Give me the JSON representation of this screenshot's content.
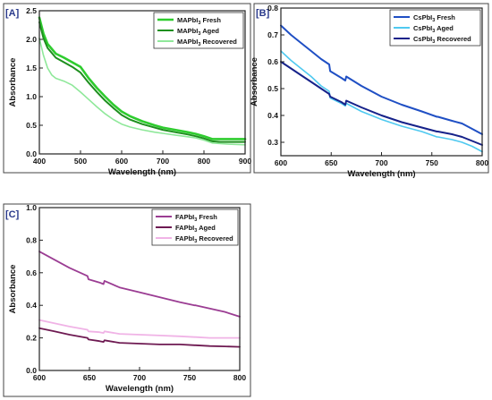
{
  "chart_data": [
    {
      "panel_label": "[A]",
      "type": "line",
      "xlabel": "Wavelength (nm)",
      "ylabel": "Absorbance",
      "xlim": [
        400,
        900
      ],
      "ylim": [
        0.0,
        2.5
      ],
      "xticks": [
        400,
        500,
        600,
        700,
        800,
        900
      ],
      "yticks": [
        0.0,
        0.5,
        1.0,
        1.5,
        2.0,
        2.5
      ],
      "xtick_labels": [
        "400",
        "500",
        "600",
        "700",
        "800",
        "900"
      ],
      "ytick_labels": [
        "0.0",
        "0.5",
        "1.0",
        "1.5",
        "2.0",
        "2.5"
      ],
      "legend_position": "top-right",
      "series": [
        {
          "name": "MAPbI3 Fresh",
          "legend_main": "MAPbI",
          "legend_sub": "3",
          "legend_rest": " Fresh",
          "color": "#2ecc2e",
          "width": 2.6,
          "x": [
            400,
            410,
            420,
            440,
            460,
            480,
            500,
            520,
            540,
            560,
            580,
            600,
            620,
            650,
            680,
            700,
            730,
            760,
            780,
            800,
            820,
            840,
            860,
            900
          ],
          "y": [
            2.38,
            2.1,
            1.92,
            1.75,
            1.68,
            1.6,
            1.52,
            1.32,
            1.15,
            1.0,
            0.86,
            0.74,
            0.66,
            0.57,
            0.5,
            0.46,
            0.42,
            0.38,
            0.35,
            0.31,
            0.26,
            0.26,
            0.26,
            0.26
          ]
        },
        {
          "name": "MAPbI3 Aged",
          "legend_main": "MAPbI",
          "legend_sub": "3",
          "legend_rest": " Aged",
          "color": "#1e8f1e",
          "width": 2.0,
          "x": [
            400,
            410,
            420,
            440,
            460,
            480,
            500,
            520,
            540,
            560,
            580,
            600,
            620,
            650,
            680,
            700,
            730,
            760,
            780,
            800,
            820,
            840,
            860,
            900
          ],
          "y": [
            2.3,
            2.02,
            1.85,
            1.68,
            1.6,
            1.52,
            1.42,
            1.24,
            1.08,
            0.93,
            0.8,
            0.68,
            0.6,
            0.52,
            0.46,
            0.42,
            0.38,
            0.34,
            0.31,
            0.27,
            0.22,
            0.21,
            0.21,
            0.21
          ]
        },
        {
          "name": "MAPbI3 Recovered",
          "legend_main": "MAPbI",
          "legend_sub": "3",
          "legend_rest": " Recovered",
          "color": "#8fe89a",
          "width": 1.6,
          "x": [
            400,
            410,
            420,
            430,
            440,
            460,
            480,
            500,
            520,
            540,
            560,
            580,
            600,
            620,
            650,
            680,
            700,
            730,
            760,
            780,
            800,
            820,
            840,
            860,
            900
          ],
          "y": [
            2.02,
            1.72,
            1.5,
            1.38,
            1.32,
            1.27,
            1.2,
            1.08,
            0.95,
            0.82,
            0.7,
            0.6,
            0.52,
            0.47,
            0.42,
            0.38,
            0.36,
            0.33,
            0.3,
            0.28,
            0.24,
            0.19,
            0.18,
            0.17,
            0.16
          ]
        }
      ]
    },
    {
      "panel_label": "[B]",
      "type": "line",
      "xlabel": "Wavelength (nm)",
      "ylabel": "Absorbance",
      "xlim": [
        600,
        800
      ],
      "ylim": [
        0.25,
        0.8
      ],
      "xticks": [
        600,
        650,
        700,
        750,
        800
      ],
      "yticks": [
        0.3,
        0.4,
        0.5,
        0.6,
        0.7,
        0.8
      ],
      "xtick_labels": [
        "600",
        "650",
        "700",
        "750",
        "800"
      ],
      "ytick_labels": [
        "0.3",
        "0.4",
        "0.5",
        "0.6",
        "0.7",
        "0.8"
      ],
      "legend_position": "top-right",
      "series": [
        {
          "name": "CsPbI3 Fresh",
          "legend_main": "CsPbI",
          "legend_sub": "3",
          "legend_rest": " Fresh",
          "color": "#1f4fc4",
          "width": 2.0,
          "x": [
            600,
            610,
            620,
            630,
            640,
            648,
            649,
            660,
            664,
            665,
            680,
            700,
            720,
            740,
            755,
            756,
            770,
            780,
            790,
            800
          ],
          "y": [
            0.735,
            0.7,
            0.67,
            0.64,
            0.61,
            0.59,
            0.565,
            0.54,
            0.53,
            0.545,
            0.51,
            0.47,
            0.44,
            0.415,
            0.395,
            0.395,
            0.38,
            0.37,
            0.35,
            0.33
          ]
        },
        {
          "name": "CsPbI3 Aged",
          "legend_main": "CsPbI",
          "legend_sub": "3",
          "legend_rest": " Aged",
          "color": "#4fc9f0",
          "width": 1.6,
          "x": [
            600,
            610,
            620,
            630,
            640,
            648,
            649,
            660,
            664,
            665,
            680,
            700,
            720,
            740,
            755,
            756,
            770,
            780,
            790,
            800
          ],
          "y": [
            0.64,
            0.605,
            0.575,
            0.545,
            0.51,
            0.49,
            0.465,
            0.445,
            0.435,
            0.445,
            0.415,
            0.385,
            0.36,
            0.34,
            0.32,
            0.32,
            0.31,
            0.3,
            0.285,
            0.265
          ]
        },
        {
          "name": "CsPbI3 Recovered",
          "legend_main": "CsPbI",
          "legend_sub": "3",
          "legend_rest": " Recovered",
          "color": "#16228a",
          "width": 2.0,
          "x": [
            600,
            610,
            620,
            630,
            640,
            648,
            649,
            660,
            664,
            665,
            680,
            700,
            720,
            740,
            755,
            756,
            770,
            780,
            790,
            800
          ],
          "y": [
            0.6,
            0.575,
            0.55,
            0.525,
            0.5,
            0.48,
            0.47,
            0.45,
            0.44,
            0.455,
            0.43,
            0.4,
            0.375,
            0.355,
            0.34,
            0.34,
            0.33,
            0.32,
            0.305,
            0.29
          ]
        }
      ]
    },
    {
      "panel_label": "[C]",
      "type": "line",
      "xlabel": "Wavelength (nm)",
      "ylabel": "Absorbance",
      "xlim": [
        600,
        800
      ],
      "ylim": [
        0.0,
        1.0
      ],
      "xticks": [
        600,
        650,
        700,
        750,
        800
      ],
      "yticks": [
        0.0,
        0.2,
        0.4,
        0.6,
        0.8,
        1.0
      ],
      "xtick_labels": [
        "600",
        "650",
        "700",
        "750",
        "800"
      ],
      "ytick_labels": [
        "0.0",
        "0.2",
        "0.4",
        "0.6",
        "0.8",
        "1.0"
      ],
      "legend_position": "top-right",
      "series": [
        {
          "name": "FAPbI3 Fresh",
          "legend_main": "FAPbI",
          "legend_sub": "3",
          "legend_rest": " Fresh",
          "color": "#9b3d93",
          "width": 1.8,
          "x": [
            600,
            615,
            630,
            648,
            649,
            660,
            664,
            665,
            680,
            700,
            720,
            740,
            755,
            756,
            770,
            785,
            800
          ],
          "y": [
            0.73,
            0.68,
            0.63,
            0.58,
            0.56,
            0.54,
            0.53,
            0.55,
            0.51,
            0.48,
            0.45,
            0.42,
            0.4,
            0.4,
            0.38,
            0.36,
            0.33
          ]
        },
        {
          "name": "FAPbI3 Aged",
          "legend_main": "FAPbI",
          "legend_sub": "3",
          "legend_rest": " Aged",
          "color": "#6e1a52",
          "width": 1.8,
          "x": [
            600,
            615,
            630,
            648,
            649,
            660,
            664,
            665,
            680,
            700,
            720,
            740,
            755,
            756,
            770,
            785,
            800
          ],
          "y": [
            0.26,
            0.24,
            0.22,
            0.2,
            0.19,
            0.18,
            0.175,
            0.185,
            0.17,
            0.165,
            0.16,
            0.16,
            0.155,
            0.155,
            0.15,
            0.148,
            0.145
          ]
        },
        {
          "name": "FAPbI3 Recovered",
          "legend_main": "FAPbI",
          "legend_sub": "3",
          "legend_rest": " Recovered",
          "color": "#f0b3e6",
          "width": 1.8,
          "x": [
            600,
            615,
            630,
            648,
            649,
            660,
            664,
            665,
            680,
            700,
            720,
            740,
            755,
            756,
            770,
            785,
            800
          ],
          "y": [
            0.31,
            0.29,
            0.27,
            0.25,
            0.24,
            0.235,
            0.23,
            0.24,
            0.225,
            0.22,
            0.215,
            0.21,
            0.205,
            0.205,
            0.2,
            0.2,
            0.2
          ]
        }
      ]
    }
  ]
}
